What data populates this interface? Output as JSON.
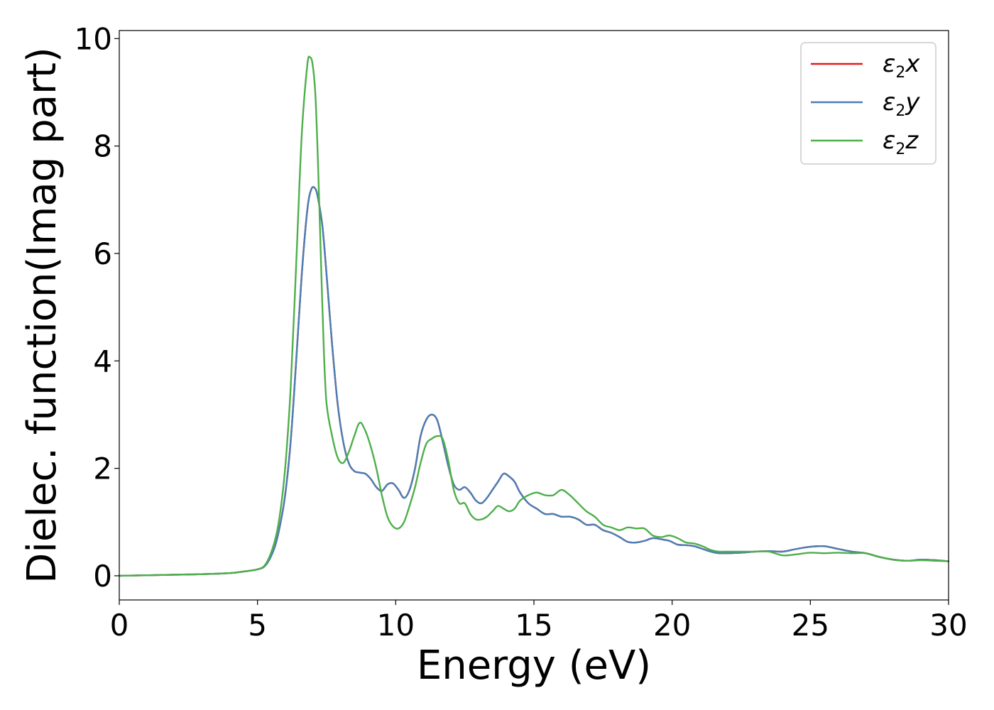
{
  "chart_data": {
    "type": "line",
    "title": "",
    "xlabel": "Energy (eV)",
    "ylabel": "Dielec. function(Imag part)",
    "xlim": [
      0,
      30
    ],
    "ylim": [
      -0.45,
      10.15
    ],
    "xticks": [
      0,
      5,
      10,
      15,
      20,
      25,
      30
    ],
    "xtick_labels": [
      "0",
      "5",
      "10",
      "15",
      "20",
      "25",
      "30"
    ],
    "yticks": [
      0,
      2,
      4,
      6,
      8,
      10
    ],
    "ytick_labels": [
      "0",
      "2",
      "4",
      "6",
      "8",
      "10"
    ],
    "grid": false,
    "legend_position": "top-right",
    "series": [
      {
        "name": "ε2x",
        "legend_main": "ε",
        "legend_sub": "2",
        "legend_tail": "x",
        "color": "#e41a1c",
        "x": [
          0,
          2,
          3,
          4,
          4.5,
          5,
          5.3,
          5.6,
          5.8,
          6.0,
          6.2,
          6.4,
          6.6,
          6.8,
          6.95,
          7.1,
          7.2,
          7.35,
          7.5,
          7.7,
          7.9,
          8.1,
          8.3,
          8.5,
          8.7,
          8.9,
          9.1,
          9.3,
          9.5,
          9.7,
          9.9,
          10.1,
          10.3,
          10.5,
          10.7,
          10.9,
          11.1,
          11.3,
          11.5,
          11.7,
          11.9,
          12.1,
          12.3,
          12.5,
          12.7,
          12.9,
          13.1,
          13.3,
          13.5,
          13.7,
          13.9,
          14.1,
          14.3,
          14.5,
          14.8,
          15.1,
          15.4,
          15.7,
          16.0,
          16.3,
          16.6,
          16.9,
          17.2,
          17.5,
          17.8,
          18.1,
          18.4,
          18.7,
          19.0,
          19.3,
          19.6,
          19.9,
          20.2,
          20.5,
          20.8,
          21.1,
          21.4,
          21.7,
          22.0,
          22.5,
          23.0,
          23.5,
          24.0,
          24.5,
          25.0,
          25.5,
          26.0,
          26.5,
          27.0,
          27.5,
          28.0,
          28.5,
          29.0,
          29.5,
          30.0
        ],
        "y": [
          0.0,
          0.02,
          0.03,
          0.05,
          0.08,
          0.12,
          0.2,
          0.5,
          0.9,
          1.5,
          2.5,
          4.0,
          5.6,
          6.8,
          7.2,
          7.2,
          7.0,
          6.5,
          5.6,
          4.3,
          3.2,
          2.5,
          2.1,
          1.95,
          1.92,
          1.9,
          1.8,
          1.65,
          1.58,
          1.7,
          1.72,
          1.6,
          1.45,
          1.6,
          2.0,
          2.6,
          2.9,
          3.0,
          2.9,
          2.5,
          2.05,
          1.7,
          1.6,
          1.65,
          1.55,
          1.4,
          1.35,
          1.45,
          1.6,
          1.75,
          1.9,
          1.85,
          1.75,
          1.55,
          1.35,
          1.25,
          1.15,
          1.15,
          1.1,
          1.1,
          1.05,
          0.95,
          0.95,
          0.85,
          0.8,
          0.72,
          0.63,
          0.62,
          0.65,
          0.7,
          0.68,
          0.65,
          0.58,
          0.57,
          0.55,
          0.5,
          0.45,
          0.42,
          0.42,
          0.43,
          0.45,
          0.46,
          0.45,
          0.5,
          0.54,
          0.55,
          0.5,
          0.45,
          0.42,
          0.35,
          0.3,
          0.28,
          0.3,
          0.29,
          0.27
        ]
      },
      {
        "name": "ε2y",
        "legend_main": "ε",
        "legend_sub": "2",
        "legend_tail": "y",
        "color": "#4a7fb5",
        "x": [
          0,
          2,
          3,
          4,
          4.5,
          5,
          5.3,
          5.6,
          5.8,
          6.0,
          6.2,
          6.4,
          6.6,
          6.8,
          6.95,
          7.1,
          7.2,
          7.35,
          7.5,
          7.7,
          7.9,
          8.1,
          8.3,
          8.5,
          8.7,
          8.9,
          9.1,
          9.3,
          9.5,
          9.7,
          9.9,
          10.1,
          10.3,
          10.5,
          10.7,
          10.9,
          11.1,
          11.3,
          11.5,
          11.7,
          11.9,
          12.1,
          12.3,
          12.5,
          12.7,
          12.9,
          13.1,
          13.3,
          13.5,
          13.7,
          13.9,
          14.1,
          14.3,
          14.5,
          14.8,
          15.1,
          15.4,
          15.7,
          16.0,
          16.3,
          16.6,
          16.9,
          17.2,
          17.5,
          17.8,
          18.1,
          18.4,
          18.7,
          19.0,
          19.3,
          19.6,
          19.9,
          20.2,
          20.5,
          20.8,
          21.1,
          21.4,
          21.7,
          22.0,
          22.5,
          23.0,
          23.5,
          24.0,
          24.5,
          25.0,
          25.5,
          26.0,
          26.5,
          27.0,
          27.5,
          28.0,
          28.5,
          29.0,
          29.5,
          30.0
        ],
        "y": [
          0.0,
          0.02,
          0.03,
          0.05,
          0.08,
          0.12,
          0.2,
          0.5,
          0.9,
          1.5,
          2.5,
          4.0,
          5.6,
          6.8,
          7.2,
          7.2,
          7.0,
          6.5,
          5.6,
          4.3,
          3.2,
          2.5,
          2.1,
          1.95,
          1.92,
          1.9,
          1.8,
          1.65,
          1.58,
          1.7,
          1.72,
          1.6,
          1.45,
          1.6,
          2.0,
          2.6,
          2.9,
          3.0,
          2.9,
          2.5,
          2.05,
          1.7,
          1.6,
          1.65,
          1.55,
          1.4,
          1.35,
          1.45,
          1.6,
          1.75,
          1.9,
          1.85,
          1.75,
          1.55,
          1.35,
          1.25,
          1.15,
          1.15,
          1.1,
          1.1,
          1.05,
          0.95,
          0.95,
          0.85,
          0.8,
          0.72,
          0.63,
          0.62,
          0.65,
          0.7,
          0.68,
          0.65,
          0.58,
          0.57,
          0.55,
          0.5,
          0.45,
          0.42,
          0.42,
          0.43,
          0.45,
          0.46,
          0.45,
          0.5,
          0.54,
          0.55,
          0.5,
          0.45,
          0.42,
          0.35,
          0.3,
          0.28,
          0.3,
          0.29,
          0.27
        ]
      },
      {
        "name": "ε2z",
        "legend_main": "ε",
        "legend_sub": "2",
        "legend_tail": "z",
        "color": "#4daf4a",
        "x": [
          0,
          2,
          3,
          4,
          4.5,
          5,
          5.3,
          5.6,
          5.8,
          6.0,
          6.2,
          6.4,
          6.6,
          6.8,
          6.9,
          7.0,
          7.1,
          7.2,
          7.3,
          7.4,
          7.5,
          7.7,
          7.9,
          8.1,
          8.3,
          8.5,
          8.7,
          8.9,
          9.1,
          9.3,
          9.5,
          9.7,
          9.9,
          10.1,
          10.3,
          10.5,
          10.7,
          10.9,
          11.1,
          11.3,
          11.5,
          11.7,
          11.9,
          12.1,
          12.3,
          12.5,
          12.7,
          12.9,
          13.1,
          13.3,
          13.5,
          13.7,
          13.9,
          14.1,
          14.3,
          14.5,
          14.8,
          15.1,
          15.4,
          15.7,
          16.0,
          16.3,
          16.6,
          16.9,
          17.2,
          17.5,
          17.8,
          18.1,
          18.4,
          18.7,
          19.0,
          19.3,
          19.6,
          19.9,
          20.2,
          20.5,
          20.8,
          21.1,
          21.4,
          21.7,
          22.0,
          22.5,
          23.0,
          23.5,
          24.0,
          24.5,
          25.0,
          25.5,
          26.0,
          26.5,
          27.0,
          27.5,
          28.0,
          28.5,
          29.0,
          29.5,
          30.0
        ],
        "y": [
          0.0,
          0.02,
          0.03,
          0.05,
          0.08,
          0.12,
          0.22,
          0.6,
          1.1,
          2.0,
          3.5,
          5.8,
          8.2,
          9.5,
          9.65,
          9.5,
          8.9,
          7.5,
          5.8,
          4.2,
          3.2,
          2.6,
          2.2,
          2.1,
          2.3,
          2.6,
          2.85,
          2.7,
          2.4,
          2.0,
          1.5,
          1.1,
          0.92,
          0.88,
          1.0,
          1.3,
          1.65,
          2.1,
          2.45,
          2.55,
          2.6,
          2.55,
          2.15,
          1.6,
          1.35,
          1.35,
          1.15,
          1.05,
          1.05,
          1.1,
          1.2,
          1.3,
          1.25,
          1.2,
          1.25,
          1.4,
          1.5,
          1.55,
          1.5,
          1.5,
          1.6,
          1.5,
          1.35,
          1.2,
          1.1,
          0.95,
          0.9,
          0.85,
          0.9,
          0.88,
          0.88,
          0.75,
          0.72,
          0.75,
          0.7,
          0.62,
          0.6,
          0.55,
          0.48,
          0.45,
          0.45,
          0.45,
          0.45,
          0.45,
          0.38,
          0.4,
          0.43,
          0.42,
          0.43,
          0.42,
          0.42,
          0.35,
          0.3,
          0.28,
          0.29,
          0.28,
          0.27
        ]
      }
    ]
  }
}
